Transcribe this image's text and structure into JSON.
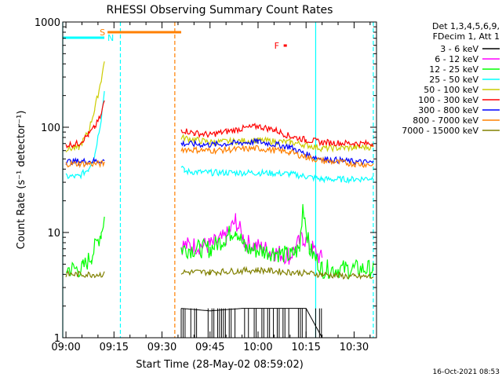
{
  "chart_data": {
    "type": "line",
    "title": "RHESSI Observing Summary Count Rates",
    "xlabel": "Start Time (28-May-02 08:59:02)",
    "ylabel": "Count Rate (s⁻¹ detector⁻¹)",
    "y_scale": "log",
    "ylim": [
      1,
      1000
    ],
    "xlim": [
      "08:59",
      "10:37"
    ],
    "y_ticks": [
      {
        "value": 1,
        "label": "1"
      },
      {
        "value": 10,
        "label": "10"
      },
      {
        "value": 100,
        "label": "100"
      },
      {
        "value": 1000,
        "label": "1000"
      }
    ],
    "x_ticks": [
      {
        "time": "09:00",
        "label": "09:00"
      },
      {
        "time": "09:15",
        "label": "09:15"
      },
      {
        "time": "09:30",
        "label": "09:30"
      },
      {
        "time": "09:45",
        "label": "09:45"
      },
      {
        "time": "10:00",
        "label": "10:00"
      },
      {
        "time": "10:15",
        "label": "10:15"
      },
      {
        "time": "10:30",
        "label": "10:30"
      }
    ],
    "legend_header": [
      "Det 1,3,4,5,6,9,",
      "FDecim 1, Att 1"
    ],
    "legend_position": "right",
    "footer": "16-Oct-2021 08:53",
    "series": [
      {
        "name": "3 - 6 keV",
        "color": "#000000",
        "points": [
          [
            "09:36",
            1.9
          ],
          [
            "09:45",
            1.8
          ],
          [
            "09:55",
            1.9
          ],
          [
            "10:05",
            1.9
          ],
          [
            "10:15",
            1.9
          ],
          [
            "10:20",
            1.0
          ]
        ]
      },
      {
        "name": "6 - 12 keV",
        "color": "#ff00ff",
        "points": [
          [
            "09:36",
            7.5
          ],
          [
            "09:45",
            7.5
          ],
          [
            "09:50",
            9
          ],
          [
            "09:53",
            13
          ],
          [
            "09:56",
            8
          ],
          [
            "10:05",
            6.5
          ],
          [
            "10:10",
            6
          ],
          [
            "10:14",
            9
          ],
          [
            "10:17",
            7
          ],
          [
            "10:20",
            5.5
          ]
        ]
      },
      {
        "name": "12 - 25 keV",
        "color": "#00ff00",
        "points": [
          [
            "09:00",
            4.5
          ],
          [
            "09:05",
            4.5
          ],
          [
            "09:08",
            6
          ],
          [
            "09:11",
            10
          ],
          [
            "09:12",
            14
          ],
          [
            "09:36",
            7
          ],
          [
            "09:45",
            7
          ],
          [
            "09:50",
            9
          ],
          [
            "09:53",
            11
          ],
          [
            "09:56",
            7
          ],
          [
            "10:05",
            6.5
          ],
          [
            "10:10",
            6
          ],
          [
            "10:13",
            7
          ],
          [
            "10:14",
            19
          ],
          [
            "10:16",
            7
          ],
          [
            "10:20",
            4.5
          ],
          [
            "10:36",
            4.5
          ]
        ]
      },
      {
        "name": "25 - 50 keV",
        "color": "#00ffff",
        "points": [
          [
            "09:00",
            34
          ],
          [
            "09:04",
            34
          ],
          [
            "09:07",
            40
          ],
          [
            "09:09",
            55
          ],
          [
            "09:11",
            120
          ],
          [
            "09:12",
            220
          ],
          [
            "09:36",
            44
          ],
          [
            "09:37",
            38
          ],
          [
            "09:45",
            37
          ],
          [
            "10:00",
            37
          ],
          [
            "10:10",
            36
          ],
          [
            "10:15",
            34
          ],
          [
            "10:20",
            32
          ],
          [
            "10:30",
            32
          ],
          [
            "10:36",
            33
          ]
        ]
      },
      {
        "name": "50 - 100 keV",
        "color": "#cccc00",
        "points": [
          [
            "09:00",
            62
          ],
          [
            "09:04",
            64
          ],
          [
            "09:07",
            90
          ],
          [
            "09:09",
            150
          ],
          [
            "09:11",
            280
          ],
          [
            "09:12",
            420
          ],
          [
            "09:36",
            80
          ],
          [
            "09:45",
            72
          ],
          [
            "10:00",
            75
          ],
          [
            "10:10",
            72
          ],
          [
            "10:15",
            68
          ],
          [
            "10:20",
            63
          ],
          [
            "10:30",
            64
          ],
          [
            "10:36",
            65
          ]
        ]
      },
      {
        "name": "100 - 300 keV",
        "color": "#ff0000",
        "points": [
          [
            "09:00",
            68
          ],
          [
            "09:04",
            70
          ],
          [
            "09:07",
            85
          ],
          [
            "09:09",
            100
          ],
          [
            "09:11",
            130
          ],
          [
            "09:12",
            180
          ],
          [
            "09:36",
            95
          ],
          [
            "09:40",
            88
          ],
          [
            "09:45",
            85
          ],
          [
            "09:55",
            97
          ],
          [
            "10:00",
            102
          ],
          [
            "10:05",
            95
          ],
          [
            "10:10",
            82
          ],
          [
            "10:15",
            76
          ],
          [
            "10:20",
            72
          ],
          [
            "10:30",
            70
          ],
          [
            "10:36",
            70
          ]
        ]
      },
      {
        "name": "300 - 800 keV",
        "color": "#0000ff",
        "points": [
          [
            "09:00",
            47
          ],
          [
            "09:12",
            48
          ],
          [
            "09:36",
            70
          ],
          [
            "09:45",
            68
          ],
          [
            "10:00",
            73
          ],
          [
            "10:10",
            65
          ],
          [
            "10:15",
            55
          ],
          [
            "10:20",
            50
          ],
          [
            "10:30",
            47
          ],
          [
            "10:36",
            46
          ]
        ]
      },
      {
        "name": "800 - 7000 keV",
        "color": "#ff8000",
        "points": [
          [
            "09:00",
            45
          ],
          [
            "09:12",
            45
          ],
          [
            "09:36",
            62
          ],
          [
            "09:45",
            60
          ],
          [
            "10:00",
            63
          ],
          [
            "10:10",
            58
          ],
          [
            "10:15",
            52
          ],
          [
            "10:20",
            48
          ],
          [
            "10:30",
            45
          ],
          [
            "10:36",
            44
          ]
        ]
      },
      {
        "name": "7000 - 15000 keV",
        "color": "#808000",
        "points": [
          [
            "09:00",
            4
          ],
          [
            "09:12",
            4
          ],
          [
            "09:36",
            4.2
          ],
          [
            "09:45",
            4.2
          ],
          [
            "10:00",
            4.4
          ],
          [
            "10:10",
            4.2
          ],
          [
            "10:20",
            4
          ],
          [
            "10:30",
            3.8
          ],
          [
            "10:36",
            3.8
          ]
        ]
      }
    ],
    "data_gaps": [
      [
        "09:12",
        "09:36"
      ]
    ],
    "markers": [
      {
        "label": "S",
        "color": "#ff8000",
        "start": "09:13",
        "end": "09:36"
      },
      {
        "label": "N",
        "color": "#00ffff",
        "start": "08:59",
        "end": "09:12"
      },
      {
        "label": "F",
        "color": "#ff0000",
        "start": "10:08",
        "end": "10:09"
      }
    ],
    "night_bands": [
      {
        "color": "#00ffff",
        "solid": "08:59",
        "dashed": "09:17"
      },
      {
        "color": "#00ffff",
        "solid": "10:18",
        "dashed": "10:36"
      }
    ],
    "saa_lines": [
      {
        "color": "#ff8000",
        "dashed": "09:34"
      }
    ]
  }
}
